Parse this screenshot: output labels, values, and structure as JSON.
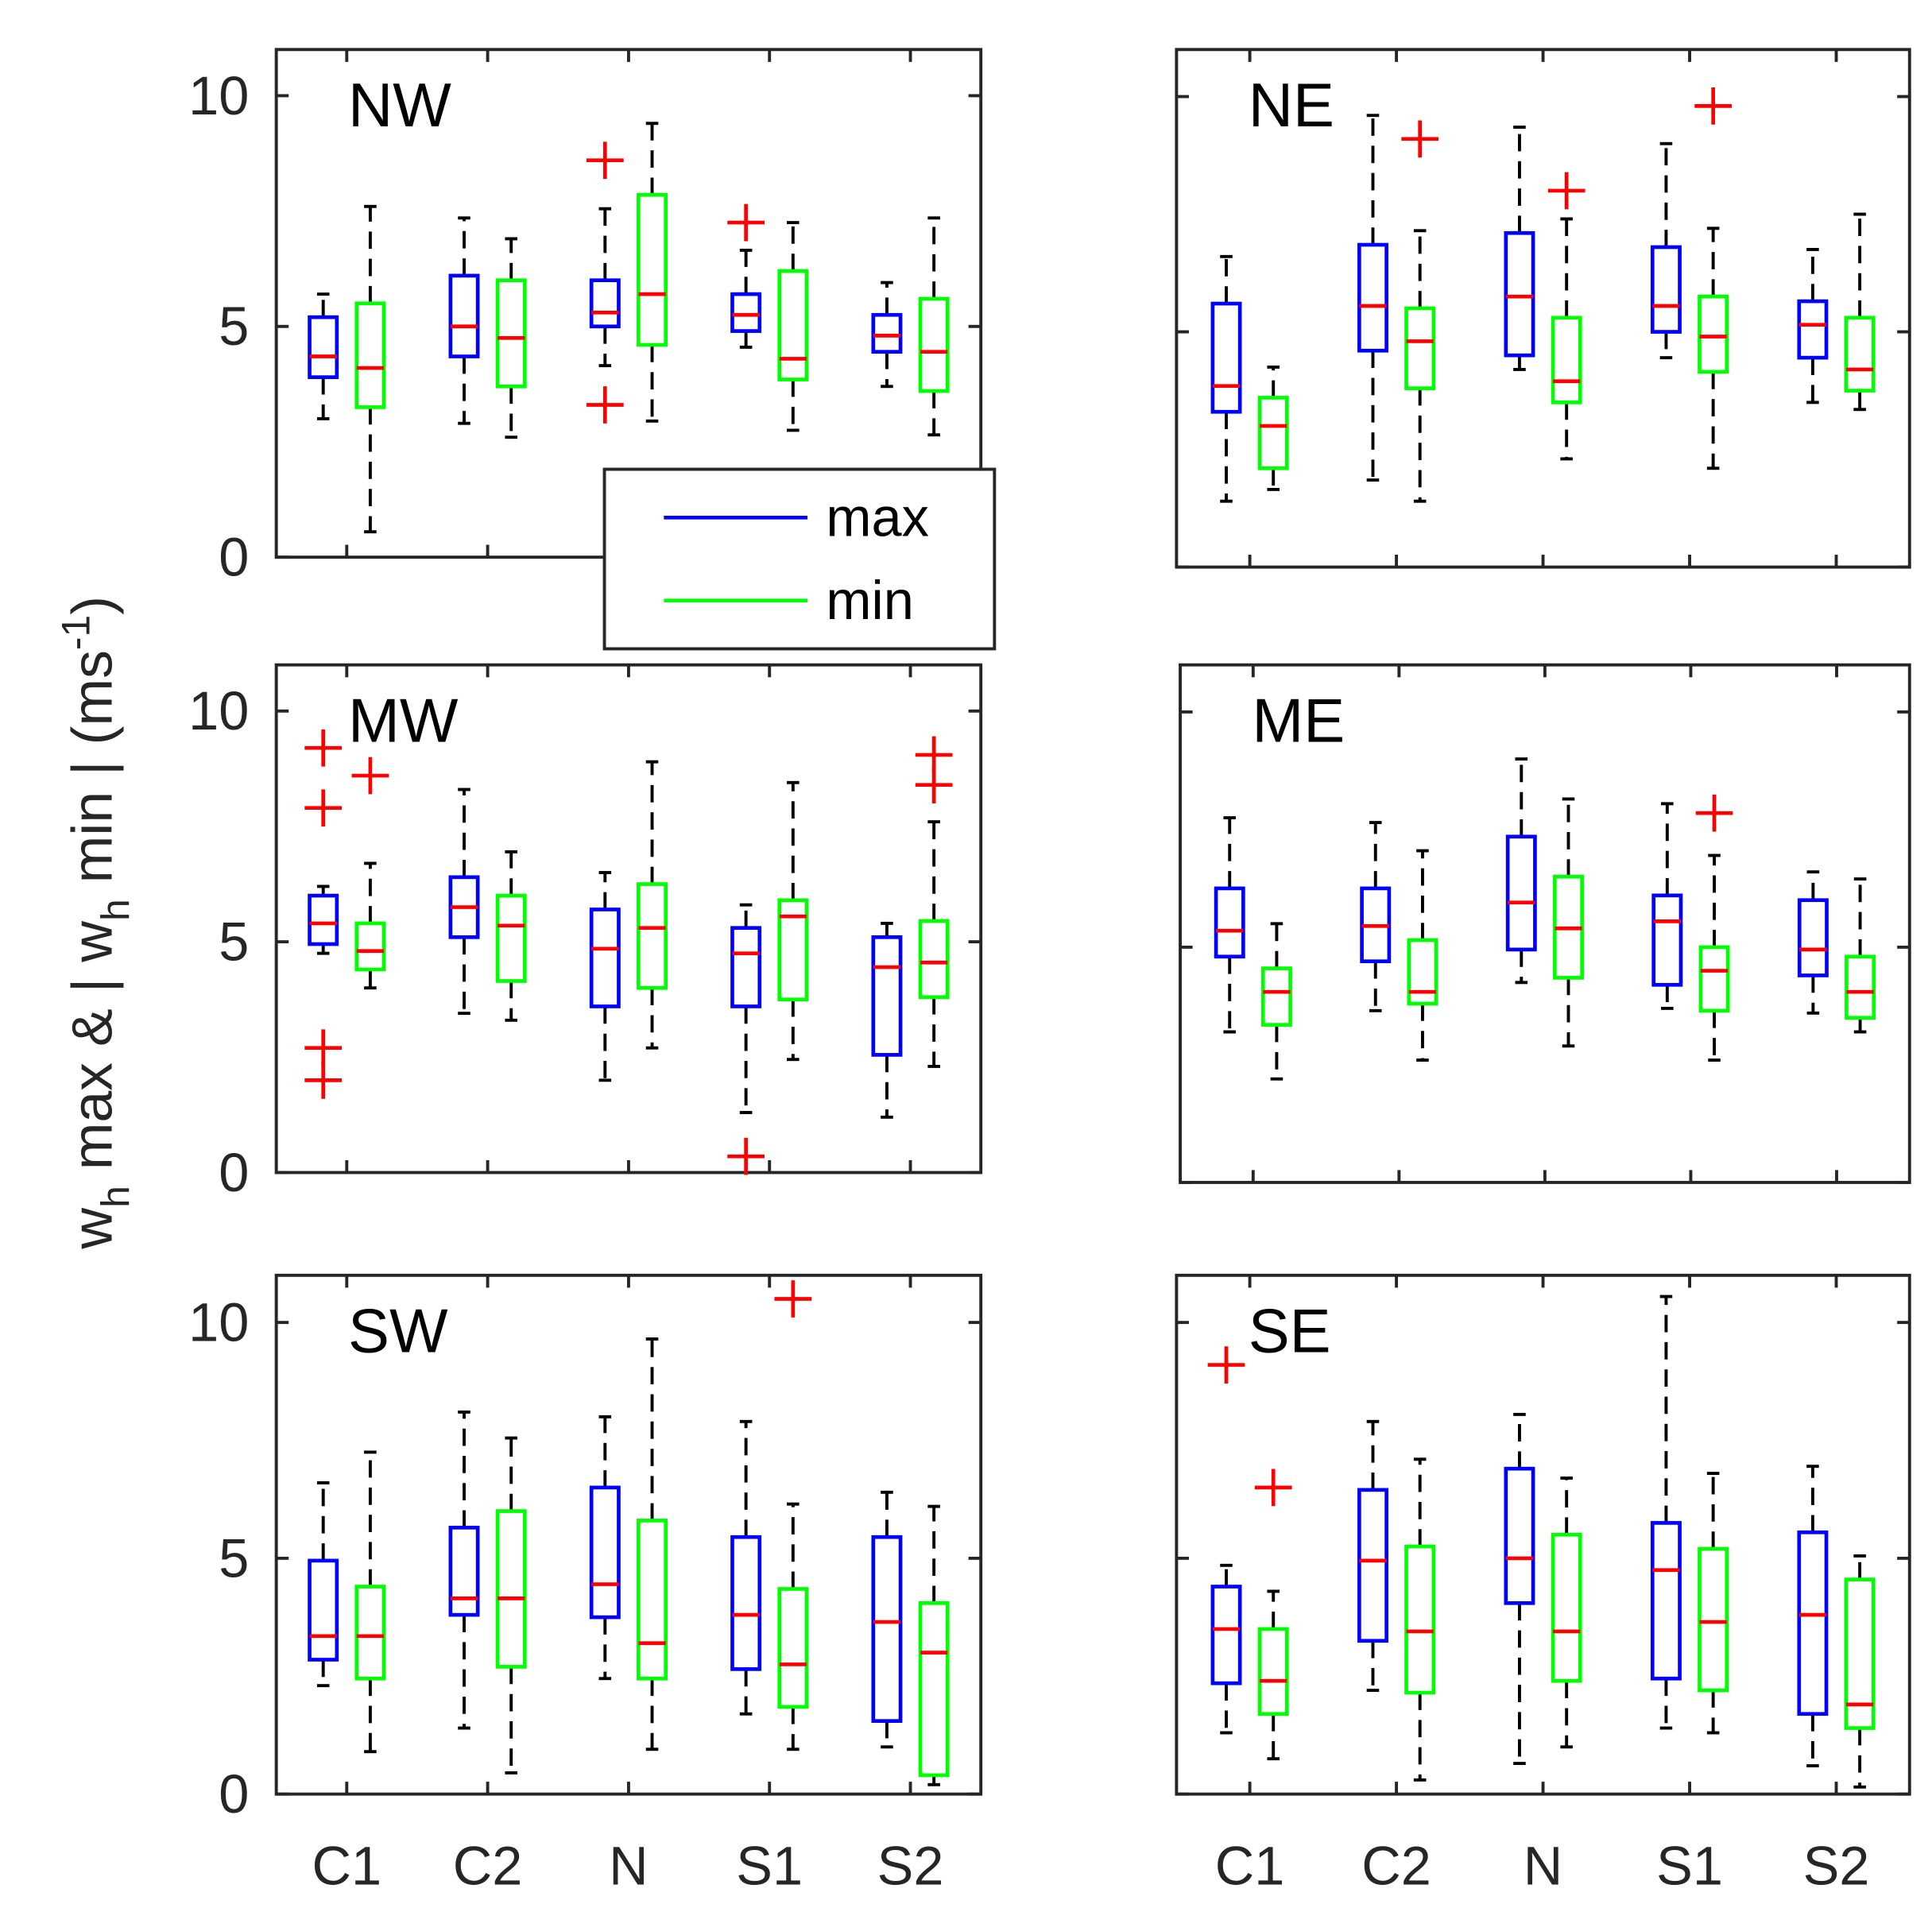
{
  "chart_data": {
    "type": "box",
    "ylabel": {
      "pre": "w",
      "sub1": "h",
      "mid": " max & | w",
      "sub2": "h",
      "post": " min | (ms",
      "sup": "-1",
      "end": ")"
    },
    "ylim": [
      0,
      11
    ],
    "yticks": [
      "0",
      "5",
      "10"
    ],
    "ytick_values": [
      0,
      5,
      10
    ],
    "categories": [
      "C1",
      "C2",
      "N",
      "S1",
      "S2"
    ],
    "legend": {
      "position": "between NW and MW panels, right",
      "entries": [
        {
          "label": "max",
          "color": "#0000ff"
        },
        {
          "label": "min",
          "color": "#00ff00"
        }
      ]
    },
    "colors": {
      "max": "#0000ff",
      "min": "#00ff00",
      "median": "#ff0000",
      "outlier": "#ff0000",
      "whisker": "#000000"
    },
    "stats_format": "[lower_whisker, q1, median, q3, upper_whisker, [outliers]]",
    "panels": [
      {
        "title": "NW",
        "max": [
          [
            3.0,
            3.9,
            4.35,
            5.2,
            5.7,
            []
          ],
          [
            2.9,
            4.35,
            5.0,
            6.1,
            7.35,
            []
          ],
          [
            4.15,
            5.0,
            5.3,
            6.0,
            7.55,
            [
              8.6,
              3.3
            ]
          ],
          [
            4.55,
            4.9,
            5.25,
            5.7,
            6.65,
            [
              7.25
            ]
          ],
          [
            3.7,
            4.45,
            4.8,
            5.25,
            5.95,
            []
          ]
        ],
        "min": [
          [
            0.55,
            3.25,
            4.1,
            5.5,
            7.6,
            []
          ],
          [
            2.6,
            3.7,
            4.75,
            6.0,
            6.9,
            []
          ],
          [
            2.95,
            4.6,
            5.7,
            7.85,
            9.4,
            []
          ],
          [
            2.75,
            3.85,
            4.3,
            6.2,
            7.25,
            []
          ],
          [
            2.65,
            3.6,
            4.45,
            5.6,
            7.35,
            []
          ]
        ]
      },
      {
        "title": "NE",
        "max": [
          [
            1.4,
            3.3,
            3.85,
            5.6,
            6.6,
            []
          ],
          [
            1.85,
            4.6,
            5.55,
            6.85,
            9.6,
            []
          ],
          [
            4.2,
            4.5,
            5.75,
            7.1,
            9.35,
            []
          ],
          [
            4.45,
            5.0,
            5.55,
            6.8,
            9.0,
            []
          ],
          [
            3.5,
            4.45,
            5.15,
            5.65,
            6.75,
            []
          ]
        ],
        "min": [
          [
            1.65,
            2.1,
            3.0,
            3.6,
            4.25,
            []
          ],
          [
            1.4,
            3.8,
            4.8,
            5.5,
            7.15,
            [
              9.1
            ]
          ],
          [
            2.3,
            3.5,
            3.95,
            5.3,
            7.4,
            [
              8.0
            ]
          ],
          [
            2.1,
            4.15,
            4.9,
            5.75,
            7.2,
            [
              9.8
            ]
          ],
          [
            3.35,
            3.75,
            4.2,
            5.3,
            7.5,
            []
          ]
        ]
      },
      {
        "title": "MW",
        "max": [
          [
            4.75,
            4.95,
            5.4,
            6.0,
            6.2,
            [
              9.2,
              7.9,
              2.7,
              2.0
            ]
          ],
          [
            3.45,
            5.1,
            5.75,
            6.4,
            8.3,
            []
          ],
          [
            2.0,
            3.6,
            4.85,
            5.7,
            6.5,
            []
          ],
          [
            1.3,
            3.6,
            4.75,
            5.3,
            5.8,
            [
              0.35
            ]
          ],
          [
            1.2,
            2.55,
            4.45,
            5.1,
            5.4,
            []
          ]
        ],
        "min": [
          [
            4.0,
            4.4,
            4.8,
            5.4,
            6.7,
            [
              8.6
            ]
          ],
          [
            3.3,
            4.15,
            5.35,
            6.0,
            6.95,
            []
          ],
          [
            2.7,
            4.0,
            5.3,
            6.25,
            8.9,
            []
          ],
          [
            2.45,
            3.75,
            5.55,
            5.9,
            8.45,
            []
          ],
          [
            2.3,
            3.8,
            4.55,
            5.45,
            7.6,
            [
              9.05,
              8.4
            ]
          ]
        ]
      },
      {
        "title": "ME",
        "max": [
          [
            3.2,
            4.8,
            5.35,
            6.25,
            7.75,
            []
          ],
          [
            3.65,
            4.7,
            5.45,
            6.25,
            7.65,
            []
          ],
          [
            4.25,
            4.95,
            5.95,
            7.35,
            9.0,
            []
          ],
          [
            3.7,
            4.2,
            5.55,
            6.1,
            8.05,
            []
          ],
          [
            3.6,
            4.4,
            4.95,
            6.0,
            6.6,
            []
          ]
        ],
        "min": [
          [
            2.2,
            3.35,
            4.05,
            4.55,
            5.5,
            []
          ],
          [
            2.6,
            3.8,
            4.05,
            5.15,
            7.05,
            []
          ],
          [
            2.9,
            4.35,
            5.4,
            6.5,
            8.15,
            []
          ],
          [
            2.6,
            3.65,
            4.5,
            5.0,
            6.95,
            [
              7.85
            ]
          ],
          [
            3.2,
            3.5,
            4.05,
            4.8,
            6.45,
            []
          ]
        ]
      },
      {
        "title": "SW",
        "max": [
          [
            2.3,
            2.85,
            3.35,
            4.95,
            6.6,
            []
          ],
          [
            1.4,
            3.8,
            4.15,
            5.65,
            8.1,
            []
          ],
          [
            2.45,
            3.75,
            4.45,
            6.5,
            8.0,
            []
          ],
          [
            1.7,
            2.65,
            3.8,
            5.45,
            7.9,
            []
          ],
          [
            1.0,
            1.55,
            3.65,
            5.45,
            6.4,
            []
          ]
        ],
        "min": [
          [
            0.9,
            2.45,
            3.35,
            4.4,
            7.25,
            []
          ],
          [
            0.45,
            2.7,
            4.15,
            6.0,
            7.55,
            []
          ],
          [
            0.95,
            2.45,
            3.2,
            5.8,
            9.65,
            []
          ],
          [
            0.95,
            1.85,
            2.75,
            4.35,
            6.15,
            [
              10.5
            ]
          ],
          [
            0.2,
            0.4,
            3.0,
            4.05,
            6.1,
            []
          ]
        ]
      },
      {
        "title": "SE",
        "max": [
          [
            1.3,
            2.35,
            3.5,
            4.4,
            4.85,
            [
              9.1
            ]
          ],
          [
            2.2,
            3.25,
            4.95,
            6.45,
            7.9,
            []
          ],
          [
            0.65,
            4.05,
            5.0,
            6.9,
            8.05,
            []
          ],
          [
            1.4,
            2.45,
            4.75,
            5.75,
            10.55,
            []
          ],
          [
            0.6,
            1.7,
            3.8,
            5.55,
            6.95,
            []
          ]
        ],
        "min": [
          [
            0.75,
            1.7,
            2.4,
            3.5,
            4.3,
            [
              6.5
            ]
          ],
          [
            0.3,
            2.15,
            3.45,
            5.25,
            7.1,
            []
          ],
          [
            1.0,
            2.4,
            3.45,
            5.5,
            6.7,
            []
          ],
          [
            1.3,
            2.2,
            3.65,
            5.2,
            6.8,
            []
          ],
          [
            0.15,
            1.4,
            1.9,
            4.55,
            5.05,
            []
          ]
        ]
      }
    ]
  }
}
